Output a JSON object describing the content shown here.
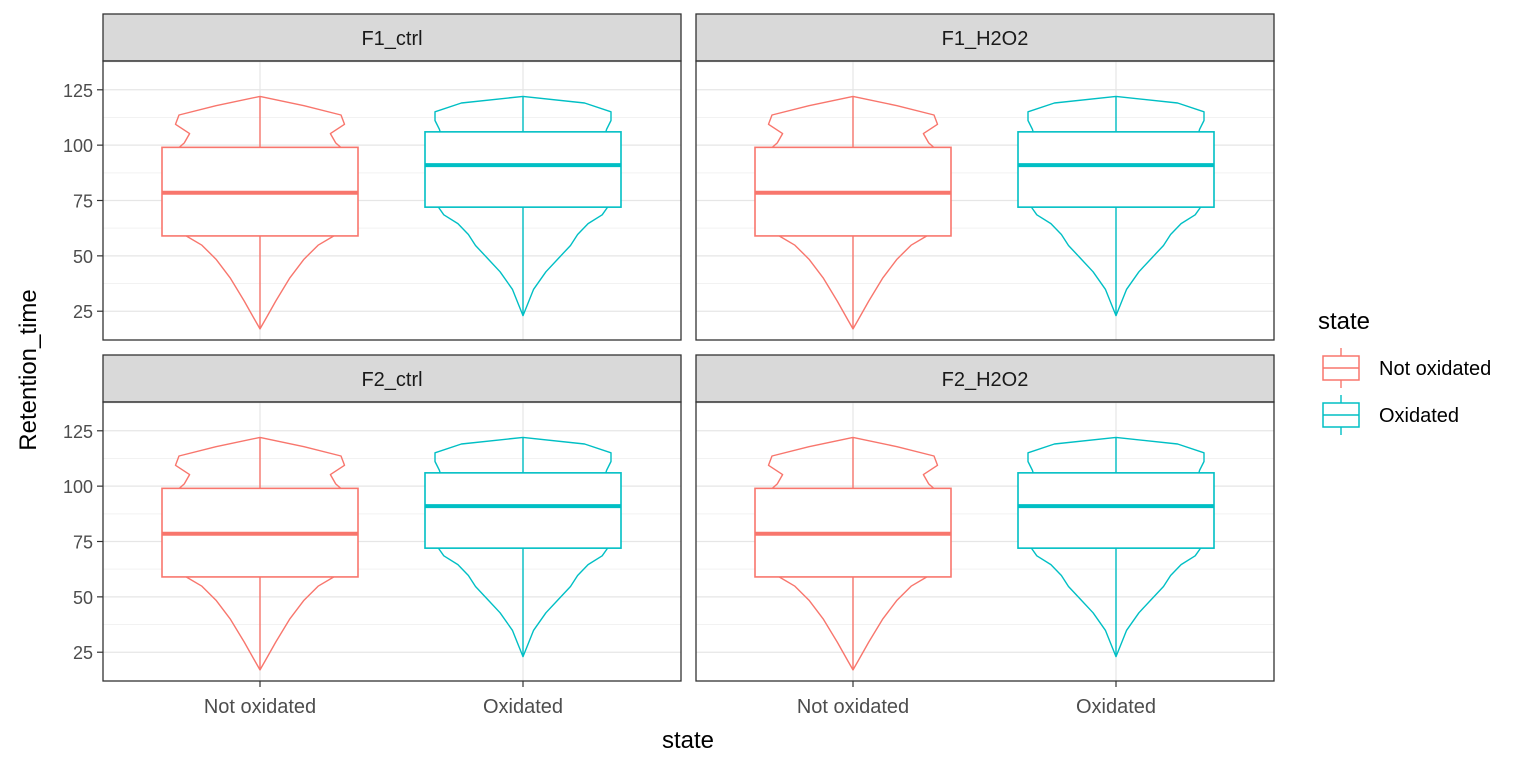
{
  "chart_data": {
    "type": "violin+box",
    "xlabel": "state",
    "ylabel": "Retention_time",
    "x_categories": [
      "Not oxidated",
      "Oxidated"
    ],
    "y_ticks": [
      25,
      50,
      75,
      100,
      125
    ],
    "ylim": [
      12,
      138
    ],
    "grid": true,
    "legend": {
      "title": "state",
      "position": "right",
      "entries": [
        "Not oxidated",
        "Oxidated"
      ]
    },
    "colors": {
      "Not oxidated": "#F8766D",
      "Oxidated": "#00BFC4"
    },
    "facets": [
      {
        "label": "F1_ctrl",
        "series": [
          {
            "name": "Not oxidated",
            "min": 17,
            "q1": 59,
            "median": 78.5,
            "q3": 99,
            "max": 122
          },
          {
            "name": "Oxidated",
            "min": 23,
            "q1": 72,
            "median": 91,
            "q3": 106,
            "max": 122
          }
        ]
      },
      {
        "label": "F1_H2O2",
        "series": [
          {
            "name": "Not oxidated",
            "min": 17,
            "q1": 59,
            "median": 78.5,
            "q3": 99,
            "max": 122
          },
          {
            "name": "Oxidated",
            "min": 23,
            "q1": 72,
            "median": 91,
            "q3": 106,
            "max": 122
          }
        ]
      },
      {
        "label": "F2_ctrl",
        "series": [
          {
            "name": "Not oxidated",
            "min": 17,
            "q1": 59,
            "median": 78.5,
            "q3": 99,
            "max": 122
          },
          {
            "name": "Oxidated",
            "min": 23,
            "q1": 72,
            "median": 91,
            "q3": 106,
            "max": 122
          }
        ]
      },
      {
        "label": "F2_H2O2",
        "series": [
          {
            "name": "Not oxidated",
            "min": 17,
            "q1": 59,
            "median": 78.5,
            "q3": 99,
            "max": 122
          },
          {
            "name": "Oxidated",
            "min": 23,
            "q1": 72,
            "median": 91,
            "q3": 106,
            "max": 122
          }
        ]
      }
    ]
  }
}
